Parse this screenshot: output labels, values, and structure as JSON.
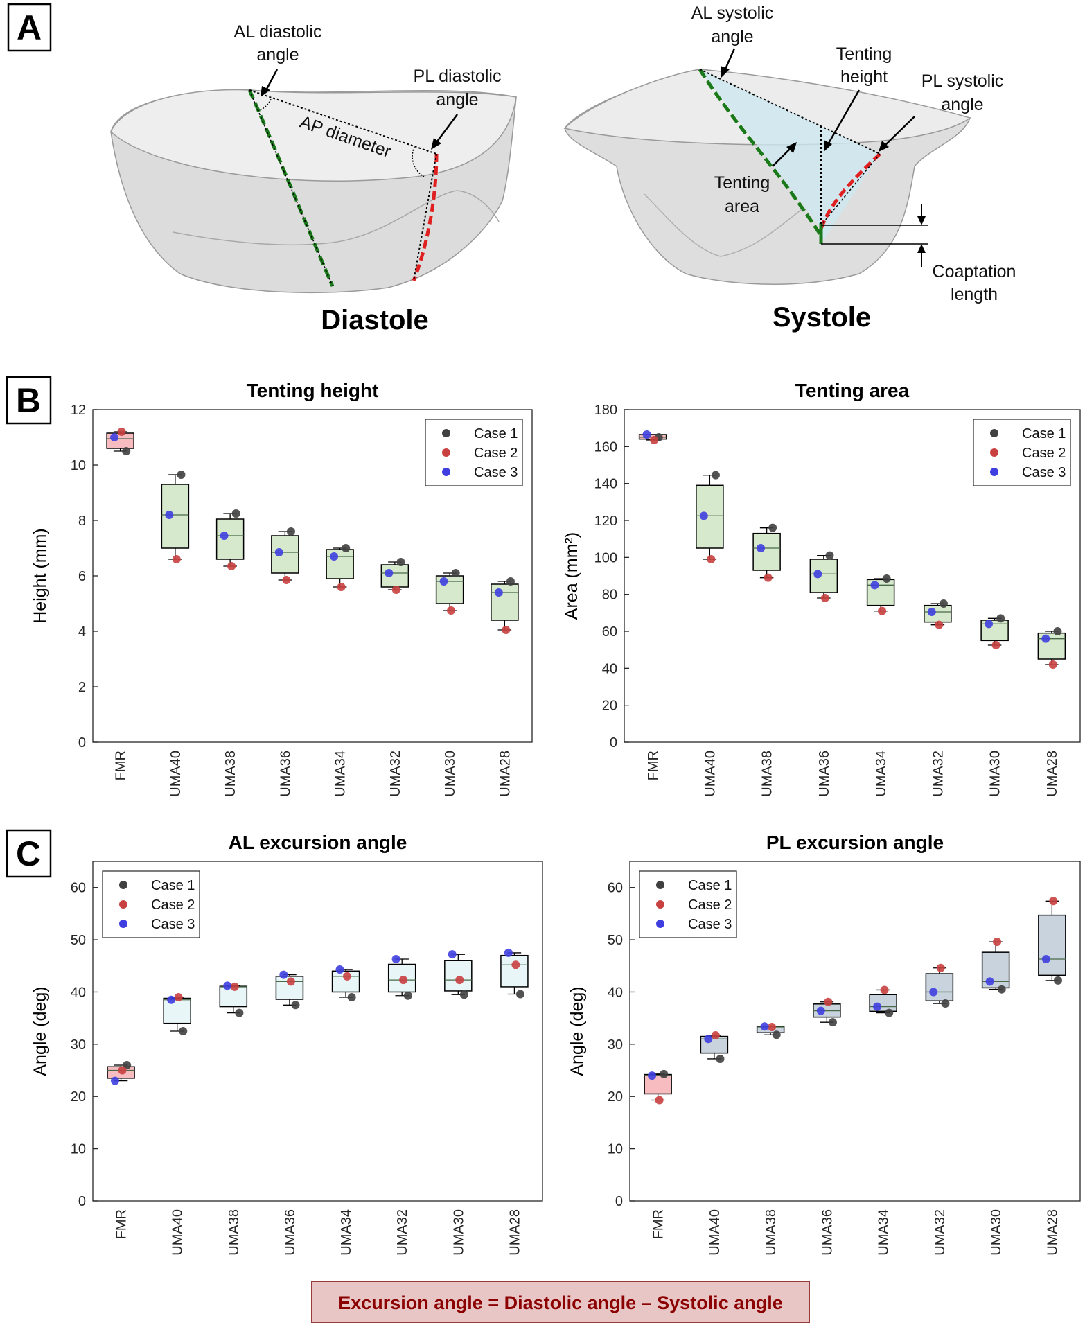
{
  "panel_labels": [
    "A",
    "B",
    "C"
  ],
  "diagram": {
    "diastole": {
      "title": "Diastole",
      "labels": [
        [
          "AL diastolic",
          "angle"
        ],
        [
          "PL diastolic",
          "angle"
        ],
        [
          "AP diameter"
        ]
      ]
    },
    "systole": {
      "title": "Systole",
      "labels": [
        [
          "AL systolic",
          "angle"
        ],
        [
          "Tenting",
          "height"
        ],
        [
          "PL systolic",
          "angle"
        ],
        [
          "Tenting",
          "area"
        ],
        [
          "Coaptation",
          "length"
        ]
      ]
    }
  },
  "chart_data": [
    {
      "type": "box",
      "title": "Tenting height",
      "ylabel": "Height (mm)",
      "categories": [
        "FMR",
        "UMA40",
        "UMA38",
        "UMA36",
        "UMA34",
        "UMA32",
        "UMA30",
        "UMA28"
      ],
      "min": [
        10.5,
        6.6,
        6.35,
        5.85,
        5.6,
        5.5,
        4.75,
        4.05
      ],
      "q1": [
        10.6,
        7.0,
        6.6,
        6.1,
        5.9,
        5.6,
        5.0,
        4.4
      ],
      "median": [
        10.95,
        8.2,
        7.45,
        6.85,
        6.7,
        6.1,
        5.8,
        5.4
      ],
      "q3": [
        11.15,
        9.3,
        8.05,
        7.45,
        6.95,
        6.4,
        6.0,
        5.7
      ],
      "max": [
        11.2,
        9.65,
        8.25,
        7.6,
        7.0,
        6.5,
        6.1,
        5.8
      ],
      "box_colors": [
        "#f6bcc0",
        "#d6e9cc",
        "#d6e9cc",
        "#d6e9cc",
        "#d6e9cc",
        "#d6e9cc",
        "#d6e9cc",
        "#d6e9cc"
      ],
      "series": [
        {
          "name": "Case 1",
          "color": "#404040",
          "values": [
            10.5,
            9.65,
            8.25,
            7.6,
            7.0,
            6.5,
            6.1,
            5.8
          ]
        },
        {
          "name": "Case 2",
          "color": "#c94040",
          "values": [
            11.2,
            6.6,
            6.35,
            5.85,
            5.6,
            5.5,
            4.75,
            4.05
          ]
        },
        {
          "name": "Case 3",
          "color": "#3f3fe0",
          "values": [
            11.0,
            8.2,
            7.45,
            6.85,
            6.7,
            6.1,
            5.8,
            5.4
          ]
        }
      ],
      "ylim": [
        0,
        12
      ],
      "yticks": [
        0,
        2,
        4,
        6,
        8,
        10,
        12
      ],
      "legend": "upper right"
    },
    {
      "type": "box",
      "title": "Tenting area",
      "ylabel": "Area (mm²)",
      "categories": [
        "FMR",
        "UMA40",
        "UMA38",
        "UMA36",
        "UMA34",
        "UMA32",
        "UMA30",
        "UMA28"
      ],
      "min": [
        163.5,
        99,
        89,
        78,
        71,
        63.5,
        52.5,
        42
      ],
      "q1": [
        164,
        105,
        93,
        81,
        74,
        65,
        55,
        45
      ],
      "median": [
        165,
        122.5,
        105,
        91,
        85,
        70.5,
        64,
        56
      ],
      "q3": [
        166.5,
        139,
        113,
        99,
        88,
        74,
        66,
        59
      ],
      "max": [
        166.5,
        144.5,
        116,
        101,
        88.5,
        75,
        67,
        60
      ],
      "box_colors": [
        "#f6bcc0",
        "#d6e9cc",
        "#d6e9cc",
        "#d6e9cc",
        "#d6e9cc",
        "#d6e9cc",
        "#d6e9cc",
        "#d6e9cc"
      ],
      "series": [
        {
          "name": "Case 1",
          "color": "#404040",
          "values": [
            165,
            144.5,
            116,
            101,
            88.5,
            75,
            67,
            60
          ]
        },
        {
          "name": "Case 2",
          "color": "#c94040",
          "values": [
            163.5,
            99,
            89,
            78,
            71,
            63.5,
            52.5,
            42
          ]
        },
        {
          "name": "Case 3",
          "color": "#3f3fe0",
          "values": [
            166.5,
            122.5,
            105,
            91,
            85,
            70.5,
            64,
            56
          ]
        }
      ],
      "ylim": [
        0,
        180
      ],
      "yticks": [
        0,
        20,
        40,
        60,
        80,
        100,
        120,
        140,
        160,
        180
      ],
      "legend": "upper right"
    },
    {
      "type": "box",
      "title": "AL excursion angle",
      "ylabel": "Angle (deg)",
      "categories": [
        "FMR",
        "UMA40",
        "UMA38",
        "UMA36",
        "UMA34",
        "UMA32",
        "UMA30",
        "UMA28"
      ],
      "min": [
        23,
        32.5,
        36,
        37.5,
        39,
        39.3,
        39.5,
        39.6
      ],
      "q1": [
        23.5,
        34,
        37.2,
        38.6,
        40,
        40,
        40.2,
        41
      ],
      "median": [
        25,
        38.5,
        41,
        42,
        43,
        42.3,
        42.3,
        45.2
      ],
      "q3": [
        25.7,
        38.8,
        41.1,
        43,
        44,
        45.3,
        46,
        47
      ],
      "max": [
        26,
        39,
        41.2,
        43.3,
        44.3,
        46.3,
        47.2,
        47.5
      ],
      "box_colors": [
        "#f6bcc0",
        "#e8f6f8",
        "#e8f6f8",
        "#e8f6f8",
        "#e8f6f8",
        "#e8f6f8",
        "#e8f6f8",
        "#e8f6f8"
      ],
      "series": [
        {
          "name": "Case 1",
          "color": "#404040",
          "values": [
            26,
            32.5,
            36,
            37.5,
            39,
            39.3,
            39.5,
            39.6
          ]
        },
        {
          "name": "Case 2",
          "color": "#c94040",
          "values": [
            25,
            39,
            41,
            42,
            43,
            42.3,
            42.3,
            45.2
          ]
        },
        {
          "name": "Case 3",
          "color": "#3f3fe0",
          "values": [
            23,
            38.5,
            41.2,
            43.3,
            44.3,
            46.3,
            47.2,
            47.5
          ]
        }
      ],
      "ylim": [
        0,
        65
      ],
      "yticks": [
        0,
        10,
        20,
        30,
        40,
        50,
        60
      ],
      "legend": "upper left"
    },
    {
      "type": "box",
      "title": "PL excursion angle",
      "ylabel": "Angle (deg)",
      "categories": [
        "FMR",
        "UMA40",
        "UMA38",
        "UMA36",
        "UMA34",
        "UMA32",
        "UMA30",
        "UMA28"
      ],
      "min": [
        19.3,
        27.2,
        31.8,
        34.2,
        36,
        37.8,
        40.5,
        42.2
      ],
      "q1": [
        20.5,
        28.3,
        32.2,
        35.2,
        36.3,
        38.3,
        40.8,
        43.2
      ],
      "median": [
        24,
        31,
        33.3,
        36.4,
        37.2,
        40,
        42,
        46.3
      ],
      "q3": [
        24.2,
        31.5,
        33.4,
        37.7,
        39.5,
        43.5,
        47.6,
        54.7
      ],
      "max": [
        24.3,
        31.7,
        33.4,
        38.1,
        40.4,
        44.6,
        49.6,
        57.4
      ],
      "box_colors": [
        "#f6bcc0",
        "#c9d3dd",
        "#c9d3dd",
        "#c9d3dd",
        "#c9d3dd",
        "#c9d3dd",
        "#c9d3dd",
        "#c9d3dd"
      ],
      "series": [
        {
          "name": "Case 1",
          "color": "#404040",
          "values": [
            24.3,
            27.2,
            31.8,
            34.2,
            36,
            37.8,
            40.5,
            42.2
          ]
        },
        {
          "name": "Case 2",
          "color": "#c94040",
          "values": [
            19.3,
            31.7,
            33.3,
            38.1,
            40.4,
            44.6,
            49.6,
            57.4
          ]
        },
        {
          "name": "Case 3",
          "color": "#3f3fe0",
          "values": [
            24,
            31,
            33.4,
            36.4,
            37.2,
            40,
            42,
            46.3
          ]
        }
      ],
      "ylim": [
        0,
        65
      ],
      "yticks": [
        0,
        10,
        20,
        30,
        40,
        50,
        60
      ],
      "legend": "upper left"
    }
  ],
  "note": "Excursion angle = Diastolic angle – Systolic angle"
}
